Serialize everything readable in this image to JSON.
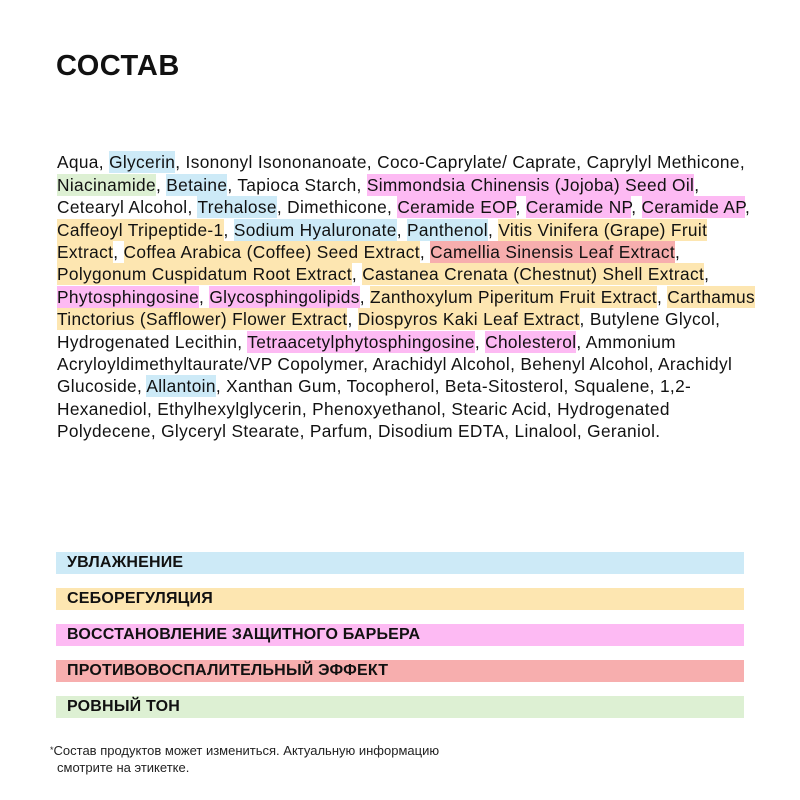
{
  "title": "СОСТАВ",
  "colors": {
    "moisture": "#cdeaf7",
    "sebum": "#fde6b1",
    "barrier": "#fdbaf3",
    "anti_inflammatory": "#f7aeae",
    "even_tone": "#ddf0d3"
  },
  "ingredients": [
    {
      "text": "Aqua, ",
      "cat": null
    },
    {
      "text": "Glycerin",
      "cat": "moisture"
    },
    {
      "text": ", Isononyl Isononanoate, Coco-Caprylate/ Caprate, Caprylyl Methicone, ",
      "cat": null
    },
    {
      "text": "Niacinamide",
      "cat": "even_tone"
    },
    {
      "text": ", ",
      "cat": null
    },
    {
      "text": "Betaine",
      "cat": "moisture"
    },
    {
      "text": ", Tapioca Starch, ",
      "cat": null
    },
    {
      "text": "Simmondsia Chinensis (Jojoba) Seed Oil",
      "cat": "barrier"
    },
    {
      "text": ", Cetearyl Alcohol, ",
      "cat": null
    },
    {
      "text": "Trehalose",
      "cat": "moisture"
    },
    {
      "text": ", Dimethicone, ",
      "cat": null
    },
    {
      "text": "Ceramide EOP",
      "cat": "barrier"
    },
    {
      "text": ", ",
      "cat": null
    },
    {
      "text": "Ceramide NP",
      "cat": "barrier"
    },
    {
      "text": ", ",
      "cat": null
    },
    {
      "text": "Ceramide AP",
      "cat": "barrier"
    },
    {
      "text": ", ",
      "cat": null
    },
    {
      "text": "Caffeoyl Tripeptide-1",
      "cat": "sebum"
    },
    {
      "text": ", ",
      "cat": null
    },
    {
      "text": "Sodium Hyaluronate",
      "cat": "moisture"
    },
    {
      "text": ", ",
      "cat": null
    },
    {
      "text": "Panthenol",
      "cat": "moisture"
    },
    {
      "text": ", ",
      "cat": null
    },
    {
      "text": "Vitis Vinifera (Grape) Fruit Extract",
      "cat": "sebum"
    },
    {
      "text": ", ",
      "cat": null
    },
    {
      "text": "Coffea Arabica (Coffee) Seed Extract",
      "cat": "sebum"
    },
    {
      "text": ", ",
      "cat": null
    },
    {
      "text": "Camellia Sinensis Leaf Extract",
      "cat": "anti_inflammatory"
    },
    {
      "text": ", ",
      "cat": null
    },
    {
      "text": "Polygonum Cuspidatum Root Extract",
      "cat": "sebum"
    },
    {
      "text": ", ",
      "cat": null
    },
    {
      "text": "Castanea Crenata (Chestnut) Shell Extract",
      "cat": "sebum"
    },
    {
      "text": ", ",
      "cat": null
    },
    {
      "text": "Phytosphingosine",
      "cat": "barrier"
    },
    {
      "text": ", ",
      "cat": null
    },
    {
      "text": "Glycosphingolipids",
      "cat": "barrier"
    },
    {
      "text": ", ",
      "cat": null
    },
    {
      "text": "Zanthoxylum Piperitum Fruit Extract",
      "cat": "sebum"
    },
    {
      "text": ", ",
      "cat": null
    },
    {
      "text": "Carthamus Tinctorius (Safflower) Flower Extract",
      "cat": "sebum"
    },
    {
      "text": ", ",
      "cat": null
    },
    {
      "text": "Diospyros Kaki Leaf Extract",
      "cat": "sebum"
    },
    {
      "text": ", Butylene Glycol, Hydrogenated Lecithin, ",
      "cat": null
    },
    {
      "text": "Tetraacetylphytosphingosine",
      "cat": "barrier"
    },
    {
      "text": ", ",
      "cat": null
    },
    {
      "text": "Cholesterol",
      "cat": "barrier"
    },
    {
      "text": ", Ammonium Acryloyldimethyltaurate/VP Copolymer, Arachidyl Alcohol, Behenyl Alcohol, Arachidyl Glucoside, ",
      "cat": null
    },
    {
      "text": "Allantoin",
      "cat": "moisture"
    },
    {
      "text": ", Xanthan Gum, Tocopherol, Beta-Sitosterol, Squalene, 1,2-Hexanediol, Ethylhexylglycerin, Phenoxyethanol, Stearic Acid, Hydrogenated Polydecene, Glyceryl Stearate, Parfum, Disodium EDTA, Linalool, Geraniol.",
      "cat": null
    }
  ],
  "legend": [
    {
      "label": "УВЛАЖНЕНИЕ",
      "cat": "moisture"
    },
    {
      "label": "СЕБОРЕГУЛЯЦИЯ",
      "cat": "sebum"
    },
    {
      "label": "ВОССТАНОВЛЕНИЕ ЗАЩИТНОГО БАРЬЕРА",
      "cat": "barrier"
    },
    {
      "label": "ПРОТИВОВОСПАЛИТЕЛЬНЫЙ ЭФФЕКТ",
      "cat": "anti_inflammatory"
    },
    {
      "label": "РОВНЫЙ ТОН",
      "cat": "even_tone"
    }
  ],
  "note": {
    "mark": "*",
    "line1": "Состав продуктов может измениться. Актуальную информацию",
    "line2": "смотрите на этикетке."
  }
}
